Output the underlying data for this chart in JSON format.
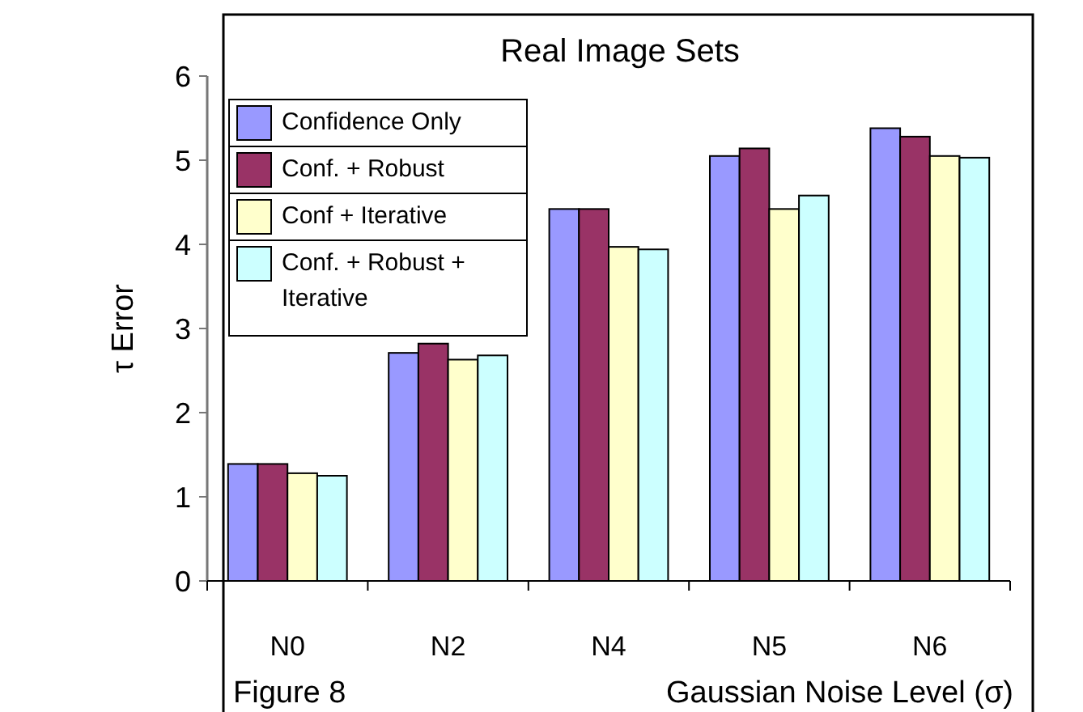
{
  "chart_data": {
    "type": "bar",
    "title": "Real Image Sets",
    "xlabel": "Gaussian Noise Level (σ)",
    "ylabel": "τ Error",
    "annotations": [
      "Figure 8"
    ],
    "categories": [
      "N0",
      "N2",
      "N4",
      "N5",
      "N6"
    ],
    "series": [
      {
        "name": "Confidence Only",
        "color": "#9999ff",
        "values": [
          1.39,
          2.71,
          4.42,
          5.05,
          5.38
        ]
      },
      {
        "name": "Conf. + Robust",
        "color": "#993366",
        "values": [
          1.39,
          2.82,
          4.42,
          5.14,
          5.28
        ]
      },
      {
        "name": "Conf + Iterative",
        "color": "#ffffcc",
        "values": [
          1.28,
          2.63,
          3.97,
          4.42,
          5.05
        ]
      },
      {
        "name": "Conf. + Robust + Iterative",
        "color": "#ccffff",
        "values": [
          1.25,
          2.68,
          3.94,
          4.58,
          5.03
        ]
      }
    ],
    "ylim": [
      0,
      6
    ],
    "yticks": [
      0,
      1,
      2,
      3,
      4,
      5,
      6
    ],
    "grid": false,
    "legend": "top left"
  }
}
